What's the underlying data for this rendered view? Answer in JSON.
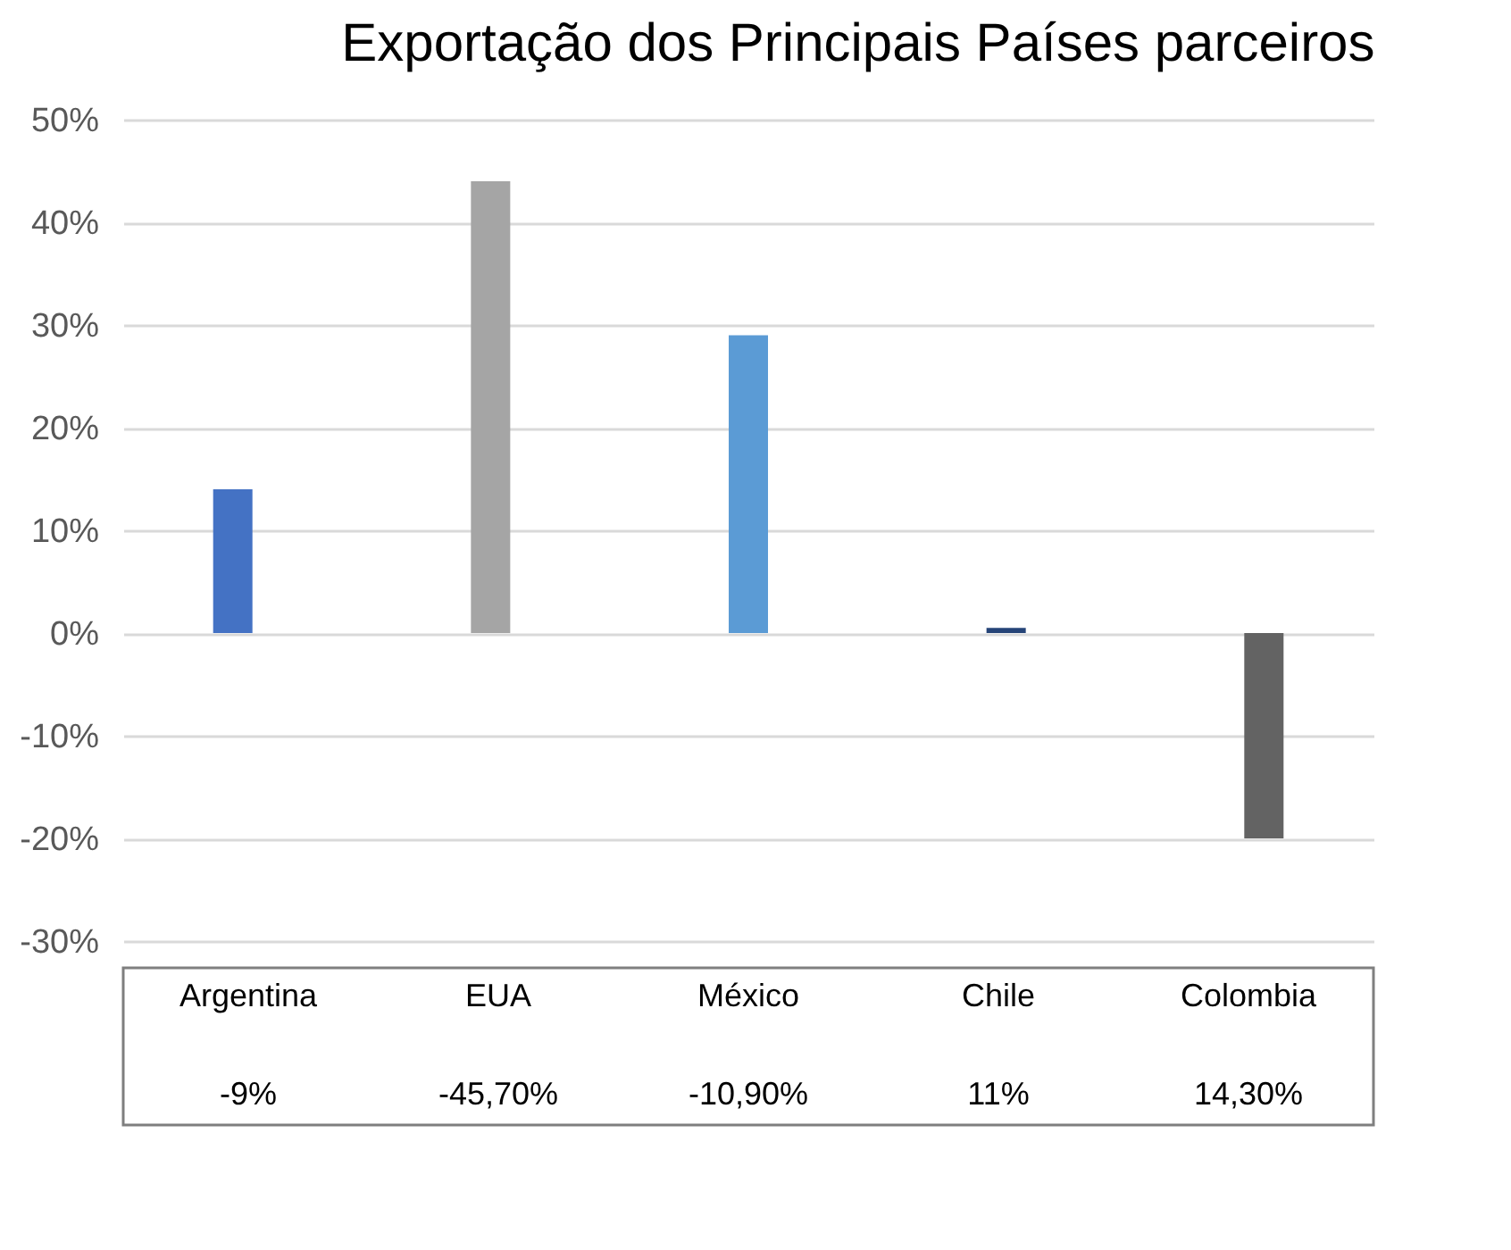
{
  "chart_data": {
    "type": "bar",
    "title": "Exportação dos Principais Países parceiros",
    "categories": [
      "Argentina",
      "EUA",
      "México",
      "Chile",
      "Colombia"
    ],
    "values": [
      14,
      44,
      29,
      0.5,
      -20
    ],
    "colors": [
      "#4472c4",
      "#a5a5a5",
      "#5b9bd5",
      "#264478",
      "#636363"
    ],
    "annotations": [
      "-9%",
      "-45,70%",
      "-10,90%",
      "11%",
      "14,30%"
    ],
    "ylim": [
      -30,
      50
    ],
    "yticks": [
      {
        "value": -30,
        "label": "-30%"
      },
      {
        "value": -20,
        "label": "-20%"
      },
      {
        "value": -10,
        "label": "-10%"
      },
      {
        "value": 0,
        "label": "0%"
      },
      {
        "value": 10,
        "label": "10%"
      },
      {
        "value": 20,
        "label": "20%"
      },
      {
        "value": 30,
        "label": "30%"
      },
      {
        "value": 40,
        "label": "40%"
      },
      {
        "value": 50,
        "label": "50%"
      }
    ],
    "grid": true
  }
}
